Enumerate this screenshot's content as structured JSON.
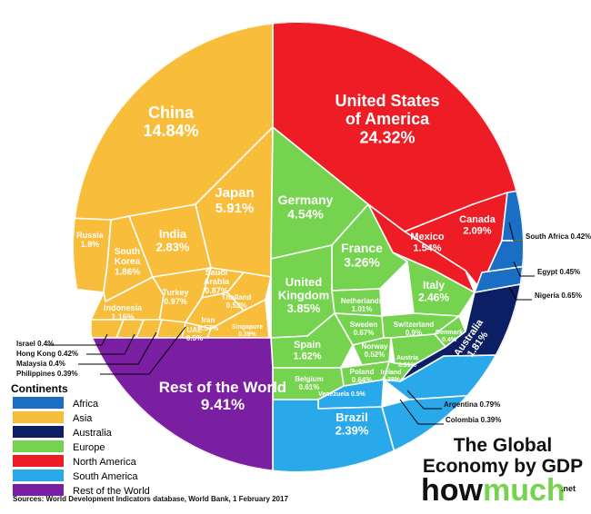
{
  "title_line1": "The Global",
  "title_line2": "Economy by GDP",
  "brand": {
    "how": "how",
    "much": "much",
    "net": ".net"
  },
  "source": "Sources: World Development Indicators database, World Bank, 1 February 2017",
  "legend": {
    "title": "Continents",
    "items": [
      {
        "label": "Africa",
        "color": "#1a6fc4"
      },
      {
        "label": "Asia",
        "color": "#f9bd3c"
      },
      {
        "label": "Australia",
        "color": "#0c1f64"
      },
      {
        "label": "Europe",
        "color": "#76d350"
      },
      {
        "label": "North America",
        "color": "#ee1c24"
      },
      {
        "label": "South America",
        "color": "#29a9ea"
      },
      {
        "label": "Rest of the World",
        "color": "#7b1fa2"
      }
    ]
  },
  "chart_data": {
    "type": "treemap",
    "unit": "% of world GDP",
    "cells": [
      {
        "name": "United States of America",
        "value": 24.32,
        "label": "24.32%",
        "continent": "North America"
      },
      {
        "name": "Canada",
        "value": 2.09,
        "label": "2.09%",
        "continent": "North America"
      },
      {
        "name": "Mexico",
        "value": 1.54,
        "label": "1.54%",
        "continent": "North America"
      },
      {
        "name": "China",
        "value": 14.84,
        "label": "14.84%",
        "continent": "Asia"
      },
      {
        "name": "Japan",
        "value": 5.91,
        "label": "5.91%",
        "continent": "Asia"
      },
      {
        "name": "India",
        "value": 2.83,
        "label": "2.83%",
        "continent": "Asia"
      },
      {
        "name": "South Korea",
        "value": 1.86,
        "label": "1.86%",
        "continent": "Asia"
      },
      {
        "name": "Russia",
        "value": 1.8,
        "label": "1.8%",
        "continent": "Asia"
      },
      {
        "name": "Indonesia",
        "value": 1.16,
        "label": "1.16%",
        "continent": "Asia"
      },
      {
        "name": "Turkey",
        "value": 0.97,
        "label": "0.97%",
        "continent": "Asia"
      },
      {
        "name": "Saudi Arabia",
        "value": 0.87,
        "label": "0.87%",
        "continent": "Asia"
      },
      {
        "name": "Iran",
        "value": 0.57,
        "label": "0.57%",
        "continent": "Asia"
      },
      {
        "name": "UAE",
        "value": 0.5,
        "label": "0.5%",
        "continent": "Asia"
      },
      {
        "name": "Thailand",
        "value": 0.53,
        "label": "0.53%",
        "continent": "Asia"
      },
      {
        "name": "Singapore",
        "value": 0.39,
        "label": "0.39%",
        "continent": "Asia"
      },
      {
        "name": "Israel",
        "value": 0.4,
        "label": "0.4%",
        "continent": "Asia"
      },
      {
        "name": "Hong Kong",
        "value": 0.42,
        "label": "0.42%",
        "continent": "Asia"
      },
      {
        "name": "Malaysia",
        "value": 0.4,
        "label": "0.4%",
        "continent": "Asia"
      },
      {
        "name": "Philippines",
        "value": 0.39,
        "label": "0.39%",
        "continent": "Asia"
      },
      {
        "name": "Germany",
        "value": 4.54,
        "label": "4.54%",
        "continent": "Europe"
      },
      {
        "name": "France",
        "value": 3.26,
        "label": "3.26%",
        "continent": "Europe"
      },
      {
        "name": "United Kingdom",
        "value": 3.85,
        "label": "3.85%",
        "continent": "Europe"
      },
      {
        "name": "Italy",
        "value": 2.46,
        "label": "2.46%",
        "continent": "Europe"
      },
      {
        "name": "Spain",
        "value": 1.62,
        "label": "1.62%",
        "continent": "Europe"
      },
      {
        "name": "Netherlands",
        "value": 1.01,
        "label": "1.01%",
        "continent": "Europe"
      },
      {
        "name": "Sweden",
        "value": 0.67,
        "label": "0.67%",
        "continent": "Europe"
      },
      {
        "name": "Switzerland",
        "value": 0.9,
        "label": "0.9%",
        "continent": "Europe"
      },
      {
        "name": "Norway",
        "value": 0.52,
        "label": "0.52%",
        "continent": "Europe"
      },
      {
        "name": "Poland",
        "value": 0.64,
        "label": "0.64%",
        "continent": "Europe"
      },
      {
        "name": "Belgium",
        "value": 0.61,
        "label": "0.61%",
        "continent": "Europe"
      },
      {
        "name": "Austria",
        "value": 0.51,
        "label": "0.51%",
        "continent": "Europe"
      },
      {
        "name": "Ireland",
        "value": 0.38,
        "label": "0.38%",
        "continent": "Europe"
      },
      {
        "name": "Denmark",
        "value": 0.4,
        "label": "0.4%",
        "continent": "Europe"
      },
      {
        "name": "Australia",
        "value": 1.81,
        "label": "1.81%",
        "continent": "Australia"
      },
      {
        "name": "Brazil",
        "value": 2.39,
        "label": "2.39%",
        "continent": "South America"
      },
      {
        "name": "Venezuela",
        "value": 0.5,
        "label": "0.5%",
        "continent": "South America"
      },
      {
        "name": "Argentina",
        "value": 0.79,
        "label": "0.79%",
        "continent": "South America"
      },
      {
        "name": "Colombia",
        "value": 0.39,
        "label": "0.39%",
        "continent": "South America"
      },
      {
        "name": "South Africa",
        "value": 0.42,
        "label": "0.42%",
        "continent": "Africa"
      },
      {
        "name": "Egypt",
        "value": 0.45,
        "label": "0.45%",
        "continent": "Africa"
      },
      {
        "name": "Nigeria",
        "value": 0.65,
        "label": "0.65%",
        "continent": "Africa"
      },
      {
        "name": "Rest of the World",
        "value": 9.41,
        "label": "9.41%",
        "continent": "Rest of the World"
      }
    ]
  }
}
